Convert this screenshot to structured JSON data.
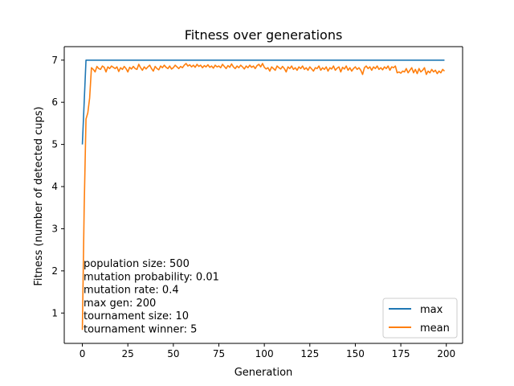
{
  "chart_data": {
    "type": "line",
    "title": "Fitness over generations",
    "xlabel": "Generation",
    "ylabel": "Fitness (number of detected cups)",
    "xlim": [
      -9.95,
      208.95
    ],
    "ylim": [
      0.28,
      7.32
    ],
    "x_ticks": [
      0,
      25,
      50,
      75,
      100,
      125,
      150,
      175,
      200
    ],
    "y_ticks": [
      1,
      2,
      3,
      4,
      5,
      6,
      7
    ],
    "grid": false,
    "legend_position": "lower-right",
    "series": [
      {
        "name": "max",
        "color": "#1f77b4",
        "points": [
          [
            0,
            5.0
          ],
          [
            2,
            7.0
          ],
          [
            199,
            7.0
          ]
        ]
      },
      {
        "name": "mean",
        "color": "#ff7f0e",
        "points": [
          [
            0,
            0.6
          ],
          [
            1,
            3.5
          ],
          [
            2,
            5.6
          ],
          [
            3,
            5.75
          ],
          [
            4,
            6.1
          ],
          [
            5,
            6.82
          ],
          [
            6,
            6.78
          ],
          [
            7,
            6.72
          ],
          [
            8,
            6.85
          ],
          [
            9,
            6.8
          ],
          [
            10,
            6.78
          ],
          [
            11,
            6.86
          ],
          [
            12,
            6.83
          ],
          [
            13,
            6.72
          ],
          [
            14,
            6.84
          ],
          [
            15,
            6.8
          ],
          [
            16,
            6.86
          ],
          [
            17,
            6.83
          ],
          [
            18,
            6.8
          ],
          [
            19,
            6.84
          ],
          [
            20,
            6.73
          ],
          [
            21,
            6.82
          ],
          [
            22,
            6.78
          ],
          [
            23,
            6.85
          ],
          [
            24,
            6.8
          ],
          [
            25,
            6.72
          ],
          [
            26,
            6.83
          ],
          [
            27,
            6.79
          ],
          [
            28,
            6.85
          ],
          [
            29,
            6.8
          ],
          [
            30,
            6.78
          ],
          [
            31,
            6.9
          ],
          [
            32,
            6.82
          ],
          [
            33,
            6.76
          ],
          [
            34,
            6.84
          ],
          [
            35,
            6.79
          ],
          [
            36,
            6.84
          ],
          [
            37,
            6.88
          ],
          [
            38,
            6.8
          ],
          [
            39,
            6.74
          ],
          [
            40,
            6.85
          ],
          [
            41,
            6.8
          ],
          [
            42,
            6.77
          ],
          [
            43,
            6.86
          ],
          [
            44,
            6.82
          ],
          [
            45,
            6.88
          ],
          [
            46,
            6.83
          ],
          [
            47,
            6.8
          ],
          [
            48,
            6.86
          ],
          [
            49,
            6.79
          ],
          [
            50,
            6.82
          ],
          [
            51,
            6.88
          ],
          [
            52,
            6.84
          ],
          [
            53,
            6.8
          ],
          [
            54,
            6.85
          ],
          [
            55,
            6.82
          ],
          [
            56,
            6.88
          ],
          [
            57,
            6.92
          ],
          [
            58,
            6.86
          ],
          [
            59,
            6.89
          ],
          [
            60,
            6.84
          ],
          [
            61,
            6.88
          ],
          [
            62,
            6.83
          ],
          [
            63,
            6.9
          ],
          [
            64,
            6.85
          ],
          [
            65,
            6.88
          ],
          [
            66,
            6.82
          ],
          [
            67,
            6.87
          ],
          [
            68,
            6.84
          ],
          [
            69,
            6.89
          ],
          [
            70,
            6.83
          ],
          [
            71,
            6.86
          ],
          [
            72,
            6.81
          ],
          [
            73,
            6.88
          ],
          [
            74,
            6.84
          ],
          [
            75,
            6.86
          ],
          [
            76,
            6.82
          ],
          [
            77,
            6.9
          ],
          [
            78,
            6.85
          ],
          [
            79,
            6.8
          ],
          [
            80,
            6.87
          ],
          [
            81,
            6.83
          ],
          [
            82,
            6.91
          ],
          [
            83,
            6.84
          ],
          [
            84,
            6.8
          ],
          [
            85,
            6.86
          ],
          [
            86,
            6.82
          ],
          [
            87,
            6.88
          ],
          [
            88,
            6.84
          ],
          [
            89,
            6.79
          ],
          [
            90,
            6.86
          ],
          [
            91,
            6.82
          ],
          [
            92,
            6.88
          ],
          [
            93,
            6.83
          ],
          [
            94,
            6.86
          ],
          [
            95,
            6.8
          ],
          [
            96,
            6.87
          ],
          [
            97,
            6.9
          ],
          [
            98,
            6.84
          ],
          [
            99,
            6.92
          ],
          [
            100,
            6.83
          ],
          [
            101,
            6.79
          ],
          [
            102,
            6.82
          ],
          [
            103,
            6.74
          ],
          [
            104,
            6.84
          ],
          [
            105,
            6.8
          ],
          [
            106,
            6.76
          ],
          [
            107,
            6.86
          ],
          [
            108,
            6.82
          ],
          [
            109,
            6.79
          ],
          [
            110,
            6.85
          ],
          [
            111,
            6.8
          ],
          [
            112,
            6.72
          ],
          [
            113,
            6.84
          ],
          [
            114,
            6.8
          ],
          [
            115,
            6.86
          ],
          [
            116,
            6.78
          ],
          [
            117,
            6.82
          ],
          [
            118,
            6.76
          ],
          [
            119,
            6.84
          ],
          [
            120,
            6.8
          ],
          [
            121,
            6.86
          ],
          [
            122,
            6.78
          ],
          [
            123,
            6.82
          ],
          [
            124,
            6.76
          ],
          [
            125,
            6.84
          ],
          [
            126,
            6.79
          ],
          [
            127,
            6.74
          ],
          [
            128,
            6.82
          ],
          [
            129,
            6.8
          ],
          [
            130,
            6.86
          ],
          [
            131,
            6.76
          ],
          [
            132,
            6.82
          ],
          [
            133,
            6.78
          ],
          [
            134,
            6.84
          ],
          [
            135,
            6.74
          ],
          [
            136,
            6.82
          ],
          [
            137,
            6.79
          ],
          [
            138,
            6.86
          ],
          [
            139,
            6.76
          ],
          [
            140,
            6.81
          ],
          [
            141,
            6.84
          ],
          [
            142,
            6.72
          ],
          [
            143,
            6.83
          ],
          [
            144,
            6.79
          ],
          [
            145,
            6.86
          ],
          [
            146,
            6.76
          ],
          [
            147,
            6.82
          ],
          [
            148,
            6.74
          ],
          [
            149,
            6.8
          ],
          [
            150,
            6.84
          ],
          [
            151,
            6.78
          ],
          [
            152,
            6.82
          ],
          [
            153,
            6.76
          ],
          [
            154,
            6.66
          ],
          [
            155,
            6.82
          ],
          [
            156,
            6.86
          ],
          [
            157,
            6.8
          ],
          [
            158,
            6.84
          ],
          [
            159,
            6.76
          ],
          [
            160,
            6.84
          ],
          [
            161,
            6.8
          ],
          [
            162,
            6.86
          ],
          [
            163,
            6.78
          ],
          [
            164,
            6.82
          ],
          [
            165,
            6.77
          ],
          [
            166,
            6.84
          ],
          [
            167,
            6.8
          ],
          [
            168,
            6.86
          ],
          [
            169,
            6.76
          ],
          [
            170,
            6.84
          ],
          [
            171,
            6.82
          ],
          [
            172,
            6.86
          ],
          [
            173,
            6.7
          ],
          [
            174,
            6.72
          ],
          [
            175,
            6.69
          ],
          [
            176,
            6.74
          ],
          [
            177,
            6.72
          ],
          [
            178,
            6.8
          ],
          [
            179,
            6.7
          ],
          [
            180,
            6.76
          ],
          [
            181,
            6.82
          ],
          [
            182,
            6.7
          ],
          [
            183,
            6.78
          ],
          [
            184,
            6.68
          ],
          [
            185,
            6.8
          ],
          [
            186,
            6.72
          ],
          [
            187,
            6.76
          ],
          [
            188,
            6.82
          ],
          [
            189,
            6.66
          ],
          [
            190,
            6.74
          ],
          [
            191,
            6.7
          ],
          [
            192,
            6.78
          ],
          [
            193,
            6.72
          ],
          [
            194,
            6.76
          ],
          [
            195,
            6.68
          ],
          [
            196,
            6.74
          ],
          [
            197,
            6.7
          ],
          [
            198,
            6.78
          ],
          [
            199,
            6.74
          ]
        ]
      }
    ],
    "annotations": [
      "population size: 500",
      "mutation probability: 0.01",
      "mutation rate: 0.4",
      "max gen: 200",
      "tournament size: 10",
      "tournament winner: 5"
    ]
  }
}
